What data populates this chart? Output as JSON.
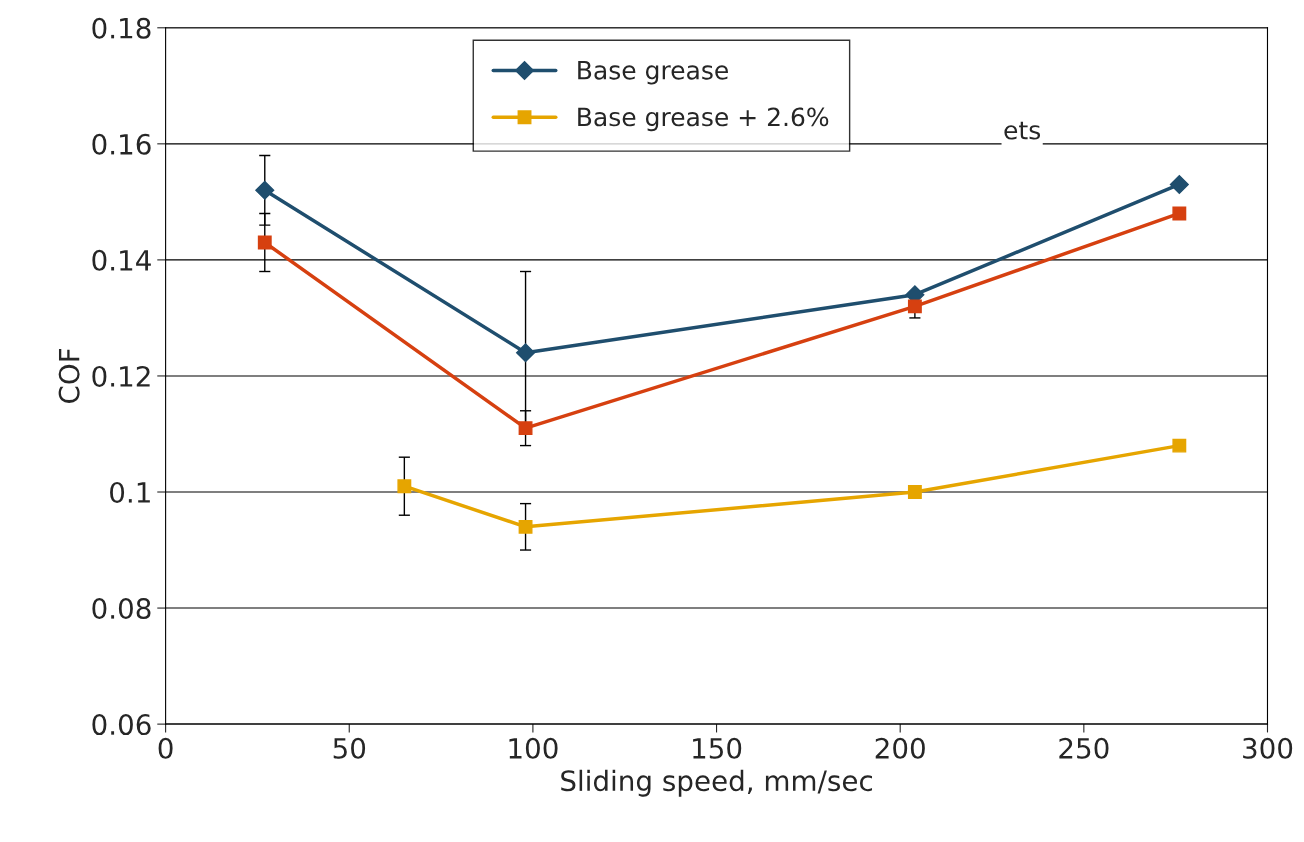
{
  "chart_data": {
    "type": "line",
    "xlabel": "Sliding speed, mm/sec",
    "ylabel": "COF",
    "xlim": [
      0,
      300
    ],
    "xticks": [
      0,
      50,
      100,
      150,
      200,
      250,
      300
    ],
    "ylim": [
      0.06,
      0.18
    ],
    "yticks": [
      0.06,
      0.08,
      0.1,
      0.12,
      0.14,
      0.16,
      0.18
    ],
    "grid": "y",
    "legend": "top",
    "annotations": [
      "ets"
    ],
    "series": [
      {
        "name": "Base grease",
        "color": "#1f4e6e",
        "marker": "diamond",
        "x": [
          27,
          98,
          204,
          276
        ],
        "values": [
          0.152,
          0.124,
          0.134,
          0.153
        ],
        "errors": [
          0.006,
          0.014,
          null,
          null
        ]
      },
      {
        "color": "#d64010",
        "marker": "square",
        "x": [
          27,
          98,
          204,
          276
        ],
        "values": [
          0.143,
          0.111,
          0.132,
          0.148
        ],
        "errors": [
          0.005,
          0.003,
          0.002,
          null
        ]
      },
      {
        "name": "Base grease + 2.6%",
        "color": "#e6a500",
        "marker": "square",
        "x": [
          65,
          98,
          204,
          276
        ],
        "values": [
          0.101,
          0.094,
          0.1,
          0.108
        ],
        "errors": [
          0.005,
          0.004,
          null,
          null
        ]
      }
    ]
  }
}
